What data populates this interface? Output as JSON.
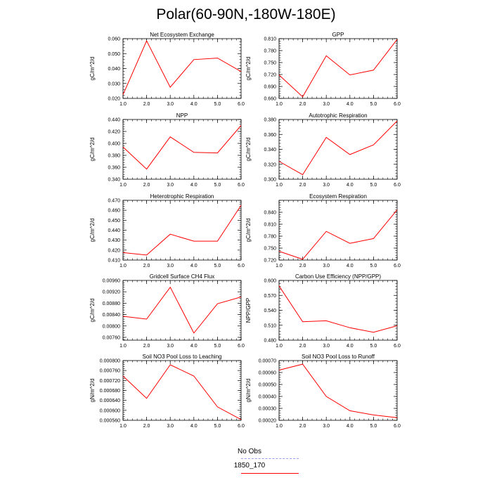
{
  "figure": {
    "title": "Polar(60-90N,-180W-180E)"
  },
  "legend": {
    "items": [
      {
        "label": "No Obs",
        "color": "#9a9aee",
        "style": "dashed"
      },
      {
        "label": "1850_170",
        "color": "#ff0000",
        "style": "solid"
      }
    ]
  },
  "chart_data": [
    {
      "type": "line",
      "title": "Net Ecosystem Exchange",
      "ylabel": "gC/m^2/d",
      "x": [
        1.0,
        2.0,
        3.0,
        4.0,
        5.0,
        6.0
      ],
      "xticks": [
        "1.0",
        "2.0",
        "3.0",
        "4.0",
        "5.0",
        "6.0"
      ],
      "xlim": [
        1,
        6
      ],
      "ylim": [
        0.02,
        0.06
      ],
      "yticks": [
        "0.020",
        "0.030",
        "0.040",
        "0.050",
        "0.060"
      ],
      "series": [
        {
          "name": "1850_170",
          "values": [
            0.0225,
            0.0585,
            0.0275,
            0.046,
            0.047,
            0.038
          ]
        }
      ]
    },
    {
      "type": "line",
      "title": "GPP",
      "ylabel": "gC/m^2/d",
      "x": [
        1.0,
        2.0,
        3.0,
        4.0,
        5.0,
        6.0
      ],
      "xticks": [
        "1.0",
        "2.0",
        "3.0",
        "4.0",
        "5.0",
        "6.0"
      ],
      "xlim": [
        1,
        6
      ],
      "ylim": [
        0.66,
        0.81
      ],
      "yticks": [
        "0.660",
        "0.690",
        "0.720",
        "0.750",
        "0.780",
        "0.810"
      ],
      "series": [
        {
          "name": "1850_170",
          "values": [
            0.719,
            0.664,
            0.767,
            0.719,
            0.731,
            0.808
          ]
        }
      ]
    },
    {
      "type": "line",
      "title": "NPP",
      "ylabel": "gC/m^2/d",
      "x": [
        1.0,
        2.0,
        3.0,
        4.0,
        5.0,
        6.0
      ],
      "xticks": [
        "1.0",
        "2.0",
        "3.0",
        "4.0",
        "5.0",
        "6.0"
      ],
      "xlim": [
        1,
        6
      ],
      "ylim": [
        0.34,
        0.44
      ],
      "yticks": [
        "0.340",
        "0.360",
        "0.380",
        "0.400",
        "0.420",
        "0.440"
      ],
      "series": [
        {
          "name": "1850_170",
          "values": [
            0.394,
            0.357,
            0.411,
            0.385,
            0.384,
            0.43
          ]
        }
      ]
    },
    {
      "type": "line",
      "title": "Autotrophic Respiration",
      "ylabel": "gC/m^2/d",
      "x": [
        1.0,
        2.0,
        3.0,
        4.0,
        5.0,
        6.0
      ],
      "xticks": [
        "1.0",
        "2.0",
        "3.0",
        "4.0",
        "5.0",
        "6.0"
      ],
      "xlim": [
        1,
        6
      ],
      "ylim": [
        0.3,
        0.38
      ],
      "yticks": [
        "0.300",
        "0.320",
        "0.340",
        "0.360",
        "0.380"
      ],
      "series": [
        {
          "name": "1850_170",
          "values": [
            0.324,
            0.306,
            0.356,
            0.333,
            0.346,
            0.378
          ]
        }
      ]
    },
    {
      "type": "line",
      "title": "Heterotrophic Respiration",
      "ylabel": "gC/m^2/d",
      "x": [
        1.0,
        2.0,
        3.0,
        4.0,
        5.0,
        6.0
      ],
      "xticks": [
        "1.0",
        "2.0",
        "3.0",
        "4.0",
        "5.0",
        "6.0"
      ],
      "xlim": [
        1,
        6
      ],
      "ylim": [
        0.41,
        0.47
      ],
      "yticks": [
        "0.410",
        "0.420",
        "0.430",
        "0.440",
        "0.450",
        "0.460",
        "0.470"
      ],
      "series": [
        {
          "name": "1850_170",
          "values": [
            0.4175,
            0.415,
            0.436,
            0.429,
            0.429,
            0.465
          ]
        }
      ]
    },
    {
      "type": "line",
      "title": "Ecosystem Respiration",
      "ylabel": "gC/m^2/d",
      "x": [
        1.0,
        2.0,
        3.0,
        4.0,
        5.0,
        6.0
      ],
      "xticks": [
        "1.0",
        "2.0",
        "3.0",
        "4.0",
        "5.0",
        "6.0"
      ],
      "xlim": [
        1,
        6
      ],
      "ylim": [
        0.72,
        0.87
      ],
      "yticks": [
        "0.720",
        "0.750",
        "0.780",
        "0.810",
        "0.840"
      ],
      "series": [
        {
          "name": "1850_170",
          "values": [
            0.742,
            0.722,
            0.792,
            0.762,
            0.774,
            0.846
          ]
        }
      ]
    },
    {
      "type": "line",
      "title": "Gridcell Surface CH4 Flux",
      "ylabel": "gC/m^2/d",
      "x": [
        1.0,
        2.0,
        3.0,
        4.0,
        5.0,
        6.0
      ],
      "xticks": [
        "1.0",
        "2.0",
        "3.0",
        "4.0",
        "5.0",
        "6.0"
      ],
      "xlim": [
        1,
        6
      ],
      "ylim": [
        0.0075,
        0.0096
      ],
      "yticks": [
        "0.00760",
        "0.00800",
        "0.00840",
        "0.00880",
        "0.00920",
        "0.00960"
      ],
      "series": [
        {
          "name": "1850_170",
          "values": [
            0.00834,
            0.00824,
            0.00936,
            0.00775,
            0.00878,
            0.00902
          ]
        }
      ]
    },
    {
      "type": "line",
      "title": "Carbon Use Efficiency (NPP/GPP)",
      "ylabel": "NPP/GPP",
      "x": [
        1.0,
        2.0,
        3.0,
        4.0,
        5.0,
        6.0
      ],
      "xticks": [
        "1.0",
        "2.0",
        "3.0",
        "4.0",
        "5.0",
        "6.0"
      ],
      "xlim": [
        1,
        6
      ],
      "ylim": [
        0.48,
        0.6
      ],
      "yticks": [
        "0.480",
        "0.510",
        "0.540",
        "0.570",
        "0.600"
      ],
      "series": [
        {
          "name": "1850_170",
          "values": [
            0.589,
            0.517,
            0.519,
            0.505,
            0.496,
            0.509
          ]
        }
      ]
    },
    {
      "type": "line",
      "title": "Soil NO3 Pool Loss to Leaching",
      "ylabel": "gN/m^2/d",
      "x": [
        1.0,
        2.0,
        3.0,
        4.0,
        5.0,
        6.0
      ],
      "xticks": [
        "1.0",
        "2.0",
        "3.0",
        "4.0",
        "5.0",
        "6.0"
      ],
      "xlim": [
        1,
        6
      ],
      "ylim": [
        0.00056,
        0.0008
      ],
      "yticks": [
        "0.000560",
        "0.000600",
        "0.000640",
        "0.000680",
        "0.000720",
        "0.000760",
        "0.000800"
      ],
      "series": [
        {
          "name": "1850_170",
          "values": [
            0.000738,
            0.000648,
            0.000783,
            0.000738,
            0.000614,
            0.000563
          ]
        }
      ]
    },
    {
      "type": "line",
      "title": "Soil NO3 Pool Loss to Runoff",
      "ylabel": "gN/m^2/d",
      "x": [
        1.0,
        2.0,
        3.0,
        4.0,
        5.0,
        6.0
      ],
      "xticks": [
        "1.0",
        "2.0",
        "3.0",
        "4.0",
        "5.0",
        "6.0"
      ],
      "xlim": [
        1,
        6
      ],
      "ylim": [
        0.0002,
        0.0007
      ],
      "yticks": [
        "0.00020",
        "0.00030",
        "0.00040",
        "0.00050",
        "0.00060",
        "0.00070"
      ],
      "series": [
        {
          "name": "1850_170",
          "values": [
            0.00062,
            0.00067,
            0.0004,
            0.00028,
            0.000245,
            0.000222
          ]
        }
      ]
    }
  ]
}
